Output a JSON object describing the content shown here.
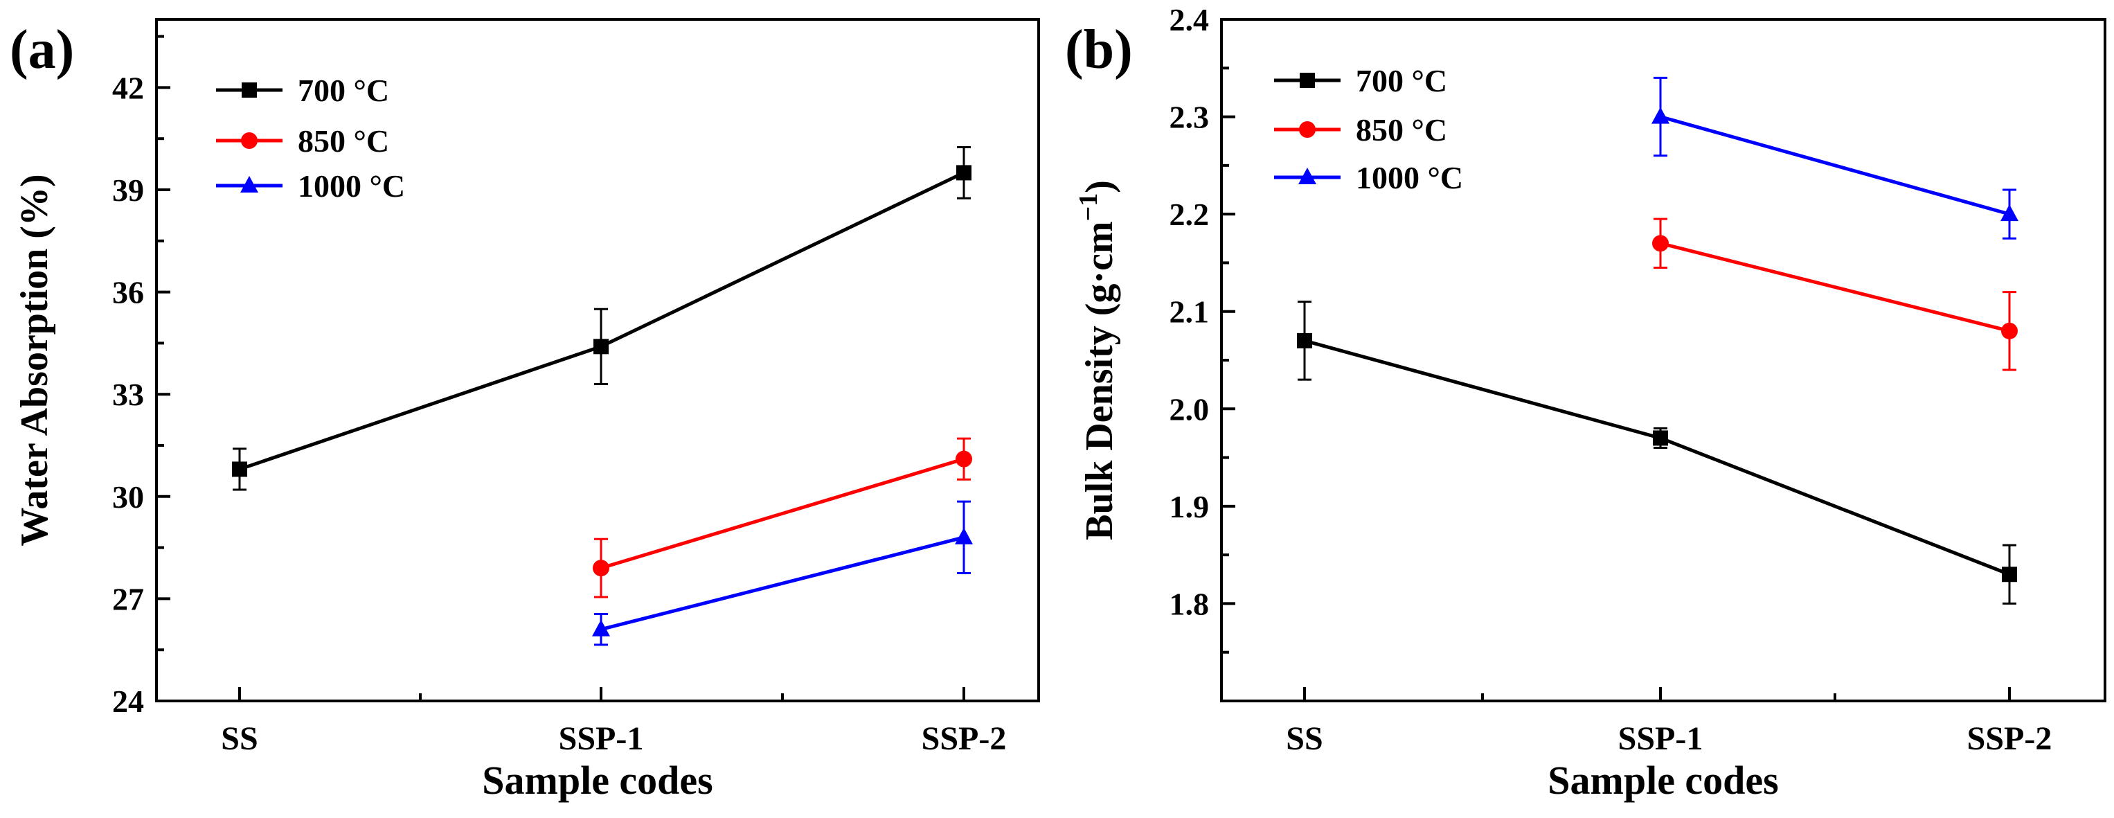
{
  "chart_data": [
    {
      "panel_label": "(a)",
      "type": "line",
      "categories": [
        "SS",
        "SSP-1",
        "SSP-2"
      ],
      "xlabel": "Sample codes",
      "ylabel": "Water Absorption (%)",
      "ylim": [
        24,
        44
      ],
      "yticks": [
        24,
        27,
        30,
        33,
        36,
        39,
        42
      ],
      "legend_position": "top-left",
      "grid": false,
      "series": [
        {
          "name": "700 °C",
          "color": "#000000",
          "marker": "square",
          "points": [
            {
              "x": "SS",
              "y": 30.8,
              "err": 0.6
            },
            {
              "x": "SSP-1",
              "y": 34.4,
              "err": 1.1
            },
            {
              "x": "SSP-2",
              "y": 39.5,
              "err": 0.75
            }
          ]
        },
        {
          "name": "850 °C",
          "color": "#ff0000",
          "marker": "circle",
          "points": [
            {
              "x": "SSP-1",
              "y": 27.9,
              "err": 0.85
            },
            {
              "x": "SSP-2",
              "y": 31.1,
              "err": 0.6
            }
          ]
        },
        {
          "name": "1000 °C",
          "color": "#0000ff",
          "marker": "triangle",
          "points": [
            {
              "x": "SSP-1",
              "y": 26.1,
              "err": 0.45
            },
            {
              "x": "SSP-2",
              "y": 28.8,
              "err": 1.05
            }
          ]
        }
      ]
    },
    {
      "panel_label": "(b)",
      "type": "line",
      "categories": [
        "SS",
        "SSP-1",
        "SSP-2"
      ],
      "xlabel": "Sample codes",
      "ylabel": "Bulk Density (g·cm",
      "ylabel_sup": "−1",
      "ylabel_end": ")",
      "ylim": [
        1.7,
        2.4
      ],
      "yticks": [
        1.8,
        1.9,
        2.0,
        2.1,
        2.2,
        2.3,
        2.4
      ],
      "ytick_labels": [
        "1.8",
        "1.9",
        "2.0",
        "2.1",
        "2.2",
        "2.3",
        "2.4"
      ],
      "legend_position": "top-left",
      "grid": false,
      "series": [
        {
          "name": "700 °C",
          "color": "#000000",
          "marker": "square",
          "points": [
            {
              "x": "SS",
              "y": 2.07,
              "err": 0.04
            },
            {
              "x": "SSP-1",
              "y": 1.97,
              "err": 0.01
            },
            {
              "x": "SSP-2",
              "y": 1.83,
              "err": 0.03
            }
          ]
        },
        {
          "name": "850 °C",
          "color": "#ff0000",
          "marker": "circle",
          "points": [
            {
              "x": "SSP-1",
              "y": 2.17,
              "err": 0.025
            },
            {
              "x": "SSP-2",
              "y": 2.08,
              "err": 0.04
            }
          ]
        },
        {
          "name": "1000 °C",
          "color": "#0000ff",
          "marker": "triangle",
          "points": [
            {
              "x": "SSP-1",
              "y": 2.3,
              "err": 0.04
            },
            {
              "x": "SSP-2",
              "y": 2.2,
              "err": 0.025
            }
          ]
        }
      ]
    }
  ]
}
